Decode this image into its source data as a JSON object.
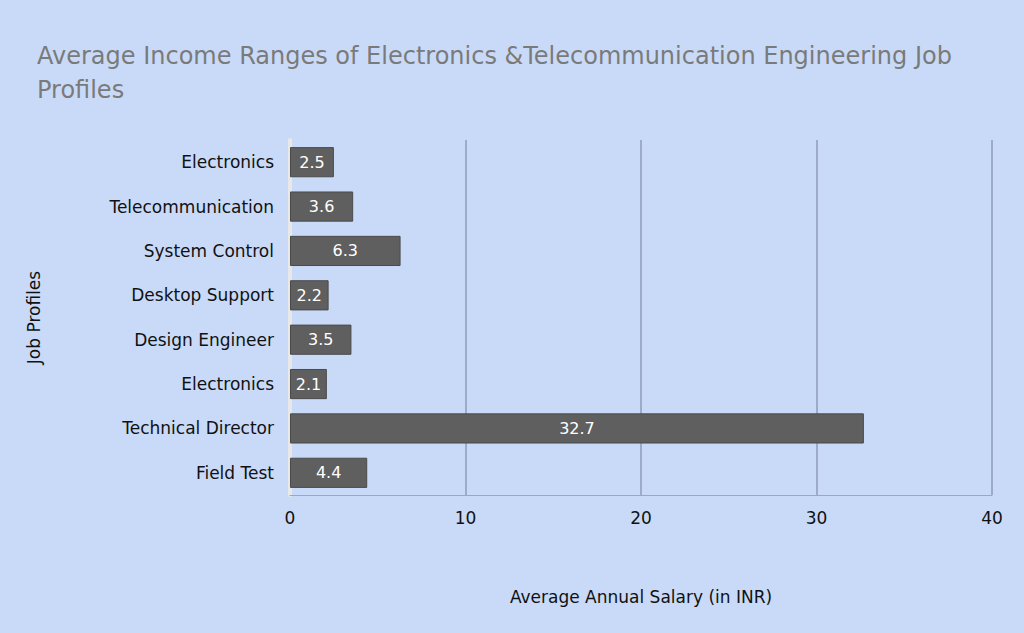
{
  "chart_data": {
    "type": "bar",
    "title": "Average Income Ranges of Electronics &Telecommunication Engineering Job Profiles",
    "x_label": "Average Annual Salary (in INR)",
    "y_label": "Job Profiles",
    "categories": [
      "Electronics",
      "Telecommunication",
      "System Control",
      "Desktop Support",
      "Design Engineer",
      "Electronics",
      "Technical Director",
      "Field Test"
    ],
    "values": [
      2.5,
      3.6,
      6.3,
      2.2,
      3.5,
      2.1,
      32.7,
      4.4
    ],
    "color": "#5f5f5f",
    "orientation": "horizontal",
    "data_labels": true,
    "xlim": [
      0,
      40
    ],
    "xticks": [
      0,
      10,
      20,
      30,
      40
    ],
    "grid": true
  }
}
